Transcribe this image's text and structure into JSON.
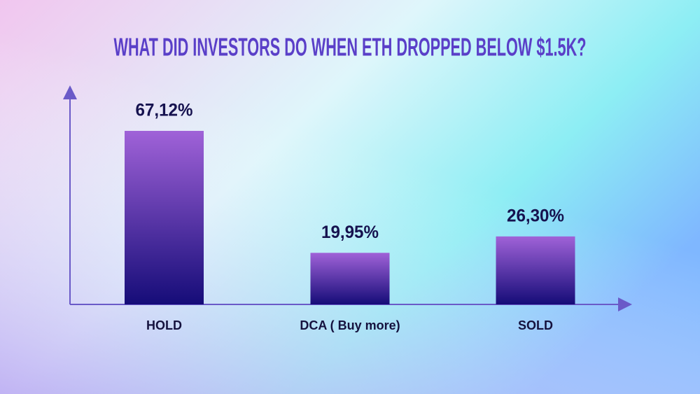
{
  "chart_data": {
    "type": "bar",
    "title": "WHAT DID INVESTORS DO WHEN ETH DROPPED BELOW $1.5K?",
    "categories": [
      "HOLD",
      "DCA ( Buy more)",
      "SOLD"
    ],
    "values": [
      67.12,
      19.95,
      26.3
    ],
    "value_labels": [
      "67,12%",
      "19,95%",
      "26,30%"
    ]
  }
}
